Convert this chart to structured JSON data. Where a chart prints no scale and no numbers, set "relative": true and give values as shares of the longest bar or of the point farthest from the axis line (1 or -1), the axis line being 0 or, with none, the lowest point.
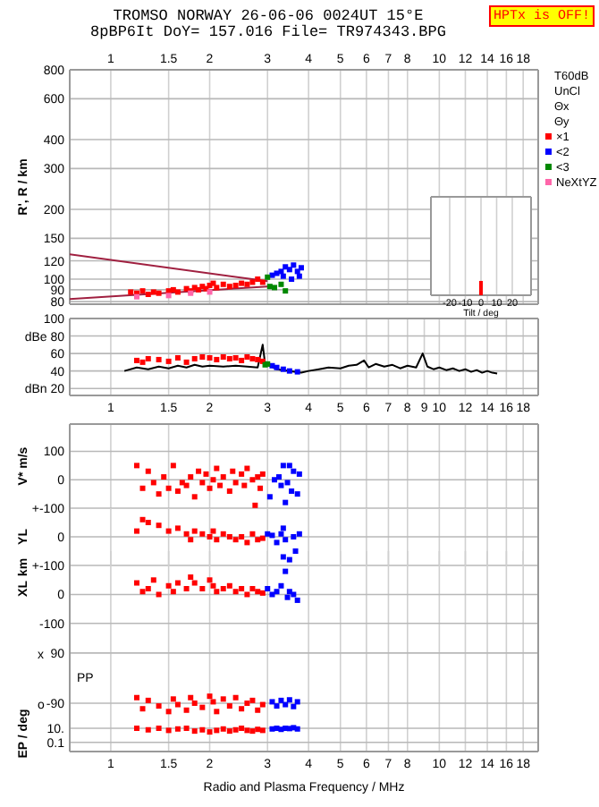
{
  "chart_data": [
    {
      "type": "scatter",
      "title": "TROMSO NORWAY   26-06-06 0024UT 15°E",
      "subtitle": "8pBP6It DoY= 157.016 File= TR974343.BPG",
      "ylabel": "R', R / km",
      "log": "xy",
      "grid": true,
      "marker": "square",
      "legend": "right",
      "annotations": [
        "HPTx is OFF!",
        "T60dB",
        "UnCl",
        "Θx",
        "Θy"
      ],
      "xlim": [
        0.75,
        20
      ],
      "xticks": [
        1,
        1.5,
        2,
        3,
        4,
        5,
        6,
        7,
        8,
        10,
        12,
        14,
        16,
        18
      ],
      "ylim": [
        78,
        800
      ],
      "yticks": [
        80,
        90,
        100,
        120,
        150,
        200,
        300,
        400,
        600,
        800
      ],
      "series": [
        {
          "type": "line",
          "marker": "none",
          "color": "#a02040",
          "x": [
            0.75,
            3.0
          ],
          "values": [
            128,
            98
          ]
        },
        {
          "type": "line",
          "marker": "none",
          "color": "#a02040",
          "x": [
            0.75,
            3.0
          ],
          "values": [
            82,
            93
          ]
        },
        {
          "name": "×1",
          "color": "#ff0000",
          "x": [
            1.15,
            1.2,
            1.25,
            1.3,
            1.35,
            1.4,
            1.5,
            1.55,
            1.6,
            1.7,
            1.75,
            1.8,
            1.85,
            1.9,
            1.95,
            2.0,
            2.05,
            2.1,
            2.2,
            2.3,
            2.4,
            2.5,
            2.6,
            2.7,
            2.8,
            2.9
          ],
          "values": [
            88,
            87,
            89,
            86,
            88,
            87,
            89,
            90,
            88,
            91,
            89,
            92,
            90,
            93,
            91,
            94,
            96,
            92,
            95,
            93,
            94,
            96,
            95,
            97,
            100,
            97
          ]
        },
        {
          "name": "<2",
          "color": "#0000ff",
          "x": [
            3.1,
            3.2,
            3.3,
            3.35,
            3.4,
            3.5,
            3.55,
            3.6,
            3.7,
            3.75,
            3.8
          ],
          "values": [
            104,
            106,
            108,
            103,
            113,
            110,
            100,
            115,
            108,
            103,
            112
          ]
        },
        {
          "name": "<3",
          "color": "#008800",
          "x": [
            3.0,
            3.05,
            3.15,
            3.3,
            3.4
          ],
          "values": [
            102,
            93,
            92,
            95,
            89
          ]
        },
        {
          "name": "NeXtYZ",
          "color": "#ff66aa",
          "x": [
            1.2,
            1.5,
            1.75,
            2.0
          ],
          "values": [
            84,
            85,
            87,
            88
          ]
        }
      ]
    },
    {
      "type": "bar",
      "relative": true,
      "xlabel": "Tilt / deg",
      "grid": "x",
      "tick_labels": "x",
      "xlim": [
        -32,
        32
      ],
      "xticks": [
        -20,
        -10,
        0,
        10,
        20
      ],
      "x": [
        0
      ],
      "series": [
        {
          "color": "#ff0000",
          "values": [
            1
          ]
        }
      ]
    },
    {
      "type": "scatter",
      "grid": true,
      "marker": "square",
      "log": "x",
      "xlim": [
        0.75,
        20
      ],
      "xticks": [
        1,
        1.5,
        2,
        3,
        4,
        5,
        6,
        7,
        8,
        9,
        10,
        12,
        14,
        16,
        18
      ],
      "ylim": [
        12,
        100
      ],
      "yticks": [
        100,
        {
          "value": 80,
          "label": "dBe 80"
        },
        60,
        40,
        {
          "value": 20,
          "label": "dBn 20"
        }
      ],
      "series": [
        {
          "type": "line",
          "marker": "none",
          "color": "#000000",
          "x": [
            1.1,
            1.2,
            1.3,
            1.4,
            1.5,
            1.6,
            1.7,
            1.8,
            1.9,
            2.0,
            2.2,
            2.4,
            2.6,
            2.8,
            2.9,
            2.95,
            3.0,
            3.2,
            3.5,
            3.8,
            4.0,
            4.3,
            4.6,
            5.0,
            5.3,
            5.6,
            5.9,
            6.1,
            6.4,
            6.8,
            7.2,
            7.6,
            8.0,
            8.5,
            8.9,
            9.2,
            9.6,
            10,
            10.5,
            11,
            11.5,
            12,
            12.5,
            13,
            13.5,
            14,
            14.5,
            15
          ],
          "values": [
            40,
            44,
            42,
            45,
            43,
            46,
            44,
            47,
            45,
            46,
            45,
            46,
            45,
            44,
            70,
            48,
            47,
            42,
            40,
            38,
            40,
            42,
            44,
            43,
            46,
            47,
            52,
            44,
            48,
            45,
            47,
            43,
            46,
            44,
            60,
            45,
            42,
            44,
            41,
            43,
            40,
            42,
            39,
            41,
            38,
            40,
            38,
            37
          ]
        },
        {
          "color": "#ff0000",
          "x": [
            1.2,
            1.25,
            1.3,
            1.4,
            1.5,
            1.6,
            1.7,
            1.8,
            1.9,
            2.0,
            2.1,
            2.2,
            2.3,
            2.4,
            2.5,
            2.6,
            2.7,
            2.8,
            2.9
          ],
          "values": [
            52,
            50,
            54,
            53,
            51,
            55,
            50,
            54,
            56,
            55,
            53,
            56,
            54,
            55,
            52,
            56,
            54,
            53,
            51
          ]
        },
        {
          "color": "#0000ff",
          "x": [
            3.1,
            3.2,
            3.35,
            3.5,
            3.7
          ],
          "values": [
            46,
            44,
            42,
            40,
            39
          ]
        },
        {
          "color": "#008800",
          "x": [
            2.95,
            3.0
          ],
          "values": [
            47,
            48
          ]
        }
      ]
    },
    {
      "type": "scatter",
      "ylabel": "V* m/s",
      "grid": true,
      "marker": "square",
      "log": "x",
      "tick_labels": "y",
      "xlim": [
        0.75,
        20
      ],
      "xticks": [
        1,
        1.5,
        2,
        3,
        4,
        5,
        6,
        7,
        8,
        10,
        12,
        14,
        16,
        18
      ],
      "ylim": [
        -100,
        196
      ],
      "yticks": [
        100,
        0,
        {
          "value": -100,
          "label": "+-100"
        }
      ],
      "series": [
        {
          "color": "#ff0000",
          "x": [
            1.2,
            1.25,
            1.3,
            1.35,
            1.4,
            1.45,
            1.5,
            1.55,
            1.6,
            1.65,
            1.7,
            1.75,
            1.8,
            1.85,
            1.9,
            1.95,
            2.0,
            2.05,
            2.1,
            2.15,
            2.2,
            2.3,
            2.35,
            2.4,
            2.5,
            2.55,
            2.6,
            2.7,
            2.75,
            2.8,
            2.85,
            2.9
          ],
          "values": [
            50,
            -30,
            30,
            -10,
            -50,
            10,
            -30,
            50,
            -40,
            -10,
            -20,
            10,
            -60,
            30,
            -10,
            20,
            -30,
            0,
            40,
            -20,
            10,
            -40,
            30,
            -10,
            20,
            -20,
            40,
            0,
            -90,
            10,
            -30,
            20
          ]
        },
        {
          "color": "#0000ff",
          "x": [
            3.05,
            3.15,
            3.25,
            3.3,
            3.35,
            3.4,
            3.45,
            3.5,
            3.55,
            3.6,
            3.7,
            3.75
          ],
          "values": [
            -60,
            0,
            10,
            -20,
            50,
            -80,
            -10,
            50,
            -40,
            30,
            -50,
            20
          ]
        }
      ]
    },
    {
      "type": "scatter",
      "ylabel": "YL",
      "annotations": [
        "km"
      ],
      "grid": true,
      "marker": "square",
      "log": "x",
      "tick_labels": "y",
      "xlim": [
        0.75,
        20
      ],
      "xticks": [
        1,
        1.5,
        2,
        3,
        4,
        5,
        6,
        7,
        8,
        10,
        12,
        14,
        16,
        18
      ],
      "ylim": [
        -100,
        100
      ],
      "yticks": [
        0,
        {
          "value": -100,
          "label": "+-100"
        }
      ],
      "series": [
        {
          "color": "#ff0000",
          "x": [
            1.2,
            1.25,
            1.3,
            1.4,
            1.5,
            1.6,
            1.7,
            1.75,
            1.8,
            1.9,
            2.0,
            2.05,
            2.1,
            2.2,
            2.3,
            2.4,
            2.5,
            2.6,
            2.7,
            2.8,
            2.9
          ],
          "values": [
            20,
            60,
            50,
            40,
            20,
            30,
            10,
            -10,
            20,
            10,
            0,
            20,
            -10,
            10,
            0,
            -10,
            0,
            -20,
            10,
            -10,
            -5
          ]
        },
        {
          "color": "#0000ff",
          "x": [
            3.0,
            3.1,
            3.2,
            3.3,
            3.35,
            3.4,
            3.5,
            3.6,
            3.65,
            3.75
          ],
          "values": [
            10,
            5,
            -20,
            10,
            30,
            -10,
            -80,
            0,
            -50,
            10
          ]
        }
      ]
    },
    {
      "type": "scatter",
      "ylabel": "XL",
      "grid": true,
      "marker": "square",
      "log": "x",
      "tick_labels": "y",
      "xlim": [
        0.75,
        20
      ],
      "xticks": [
        1,
        1.5,
        2,
        3,
        4,
        5,
        6,
        7,
        8,
        10,
        12,
        14,
        16,
        18
      ],
      "ylim": [
        -110,
        150
      ],
      "yticks": [
        0,
        -100
      ],
      "series": [
        {
          "color": "#ff0000",
          "x": [
            1.2,
            1.25,
            1.3,
            1.35,
            1.4,
            1.5,
            1.55,
            1.6,
            1.7,
            1.75,
            1.8,
            1.9,
            2.0,
            2.05,
            2.1,
            2.2,
            2.3,
            2.4,
            2.5,
            2.6,
            2.7,
            2.8,
            2.9
          ],
          "values": [
            40,
            10,
            20,
            50,
            0,
            30,
            10,
            40,
            20,
            60,
            40,
            20,
            50,
            30,
            10,
            20,
            30,
            10,
            20,
            0,
            20,
            10,
            5
          ]
        },
        {
          "color": "#0000ff",
          "x": [
            3.0,
            3.1,
            3.2,
            3.3,
            3.35,
            3.4,
            3.45,
            3.5,
            3.6,
            3.7
          ],
          "values": [
            20,
            0,
            10,
            30,
            130,
            80,
            -10,
            10,
            0,
            -20
          ]
        }
      ]
    },
    {
      "type": "scatter",
      "ylabel": "PP",
      "grid": true,
      "marker": "square",
      "log": "x",
      "tick_labels": "y",
      "xlim": [
        0.75,
        20
      ],
      "xticks": [
        1,
        1.5,
        2,
        3,
        4,
        5,
        6,
        7,
        8,
        10,
        12,
        14,
        16,
        18
      ],
      "annotations": [
        "x",
        "o"
      ],
      "ylim": [
        -135,
        186
      ],
      "yticks": [
        90,
        -90
      ],
      "series": [
        {
          "color": "#ff0000",
          "x": [
            1.2,
            1.25,
            1.3,
            1.4,
            1.5,
            1.55,
            1.6,
            1.7,
            1.75,
            1.8,
            1.9,
            2.0,
            2.05,
            2.1,
            2.2,
            2.3,
            2.4,
            2.5,
            2.6,
            2.7,
            2.8,
            2.9
          ],
          "values": [
            -70,
            -110,
            -80,
            -100,
            -120,
            -75,
            -95,
            -115,
            -70,
            -90,
            -105,
            -65,
            -85,
            -120,
            -75,
            -100,
            -70,
            -110,
            -90,
            -80,
            -115,
            -95
          ]
        },
        {
          "color": "#0000ff",
          "x": [
            3.1,
            3.2,
            3.3,
            3.4,
            3.5,
            3.6,
            3.7
          ],
          "values": [
            -85,
            -100,
            -80,
            -95,
            -78,
            -102,
            -85
          ]
        }
      ]
    },
    {
      "type": "scatter",
      "ylabel": "EP / deg",
      "xlabel": "Radio and Plasma Frequency / MHz",
      "grid": true,
      "marker": "square",
      "log": "xy",
      "xlim": [
        0.75,
        20
      ],
      "xticks": [
        1,
        1.5,
        2,
        3,
        4,
        5,
        6,
        7,
        8,
        10,
        12,
        14,
        16,
        18
      ],
      "ylim": [
        0.005,
        600
      ],
      "yticks": [
        {
          "value": 10,
          "label": "10."
        },
        0.1
      ],
      "series": [
        {
          "color": "#ff0000",
          "x": [
            1.2,
            1.3,
            1.4,
            1.5,
            1.6,
            1.7,
            1.8,
            1.9,
            2.0,
            2.1,
            2.2,
            2.3,
            2.4,
            2.5,
            2.6,
            2.7,
            2.8,
            2.9
          ],
          "values": [
            10,
            6,
            10,
            5,
            8,
            10,
            4,
            6,
            3,
            5,
            8,
            4,
            6,
            10,
            5,
            4,
            7,
            5
          ]
        },
        {
          "color": "#0000ff",
          "x": [
            3.1,
            3.2,
            3.3,
            3.4,
            3.5,
            3.6,
            3.7
          ],
          "values": [
            8,
            10,
            7,
            10,
            9,
            12,
            8
          ]
        }
      ]
    }
  ]
}
